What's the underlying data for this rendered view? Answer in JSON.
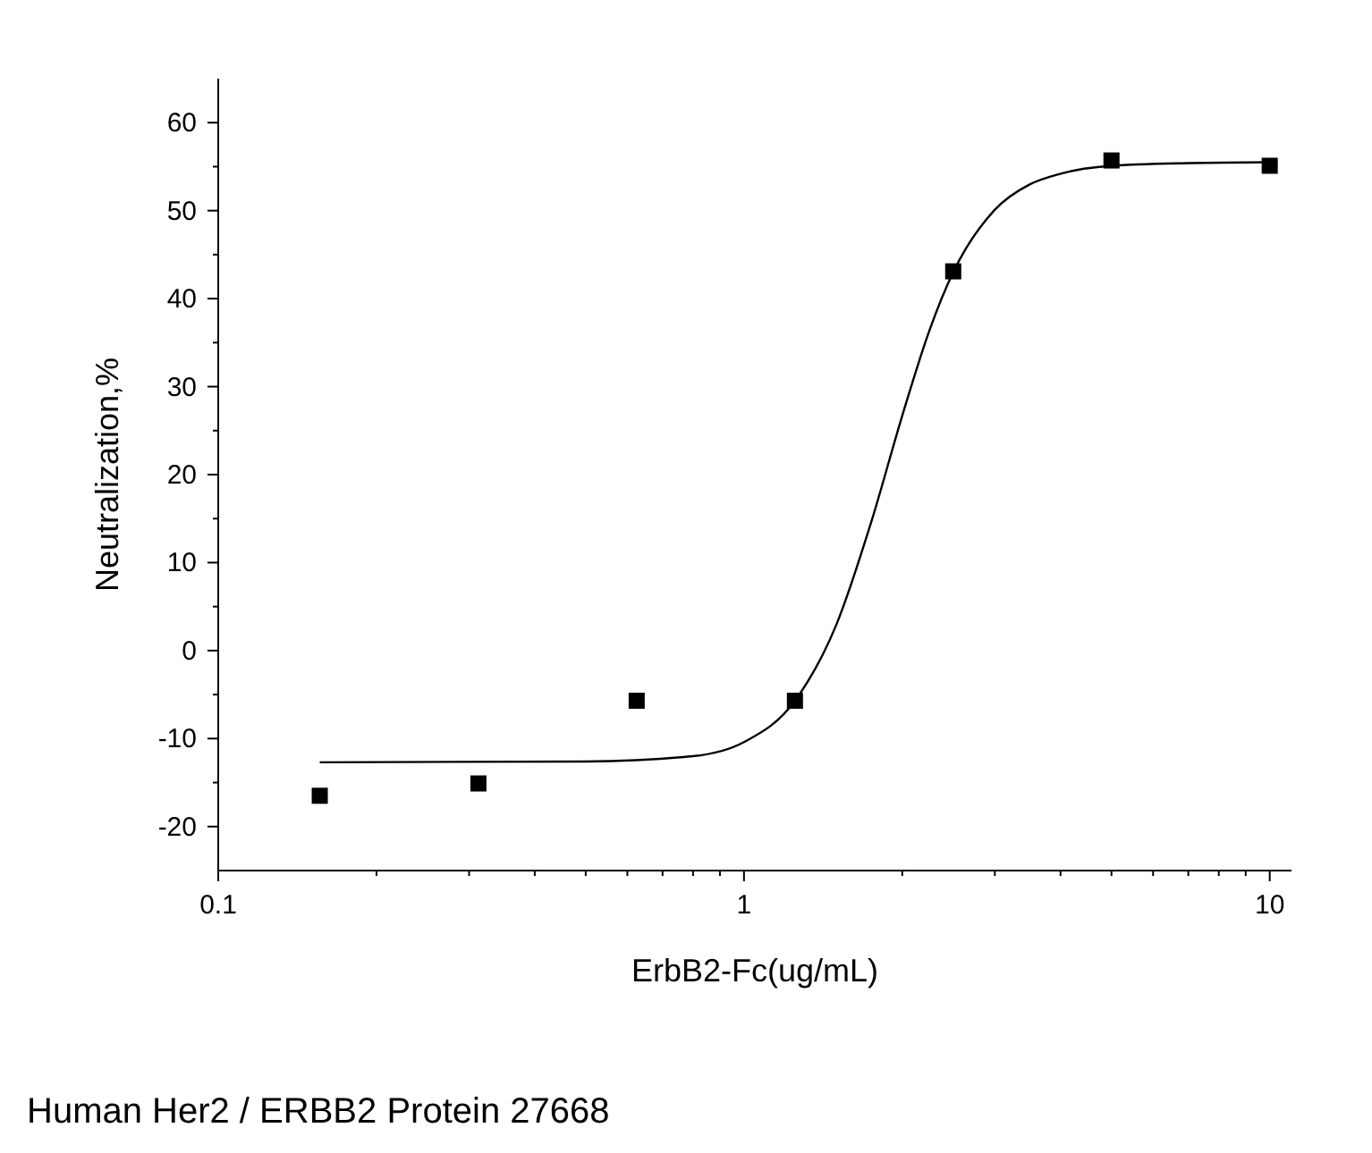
{
  "chart_data": {
    "type": "scatter",
    "xlabel": "ErbB2-Fc(ug/mL)",
    "ylabel": "Neutralization,%",
    "log": "x",
    "marker": "square",
    "grid": false,
    "xlim": [
      0.1,
      11
    ],
    "ylim": [
      -25,
      65
    ],
    "xticks": [
      0.1,
      {
        "value": 0.2,
        "label": null
      },
      {
        "value": 0.3,
        "label": null
      },
      {
        "value": 0.4,
        "label": null
      },
      {
        "value": 0.5,
        "label": null
      },
      {
        "value": 0.6,
        "label": null
      },
      {
        "value": 0.7,
        "label": null
      },
      {
        "value": 0.8,
        "label": null
      },
      {
        "value": 0.9,
        "label": null
      },
      1,
      {
        "value": 2,
        "label": null
      },
      {
        "value": 3,
        "label": null
      },
      {
        "value": 4,
        "label": null
      },
      {
        "value": 5,
        "label": null
      },
      {
        "value": 6,
        "label": null
      },
      {
        "value": 7,
        "label": null
      },
      {
        "value": 8,
        "label": null
      },
      {
        "value": 9,
        "label": null
      },
      10
    ],
    "yticks": [
      -20,
      {
        "value": -15,
        "label": null
      },
      -10,
      {
        "value": -5,
        "label": null
      },
      0,
      {
        "value": 5,
        "label": null
      },
      10,
      {
        "value": 15,
        "label": null
      },
      20,
      {
        "value": 25,
        "label": null
      },
      30,
      {
        "value": 35,
        "label": null
      },
      40,
      {
        "value": 45,
        "label": null
      },
      50,
      {
        "value": 55,
        "label": null
      },
      60
    ],
    "series": [
      {
        "color": "#000000",
        "x": [
          0.156,
          0.3125,
          0.625,
          1.25,
          2.5,
          5,
          10
        ],
        "values": [
          -16.5,
          -15.1,
          -5.7,
          -5.7,
          43.1,
          55.7,
          55.1
        ]
      },
      {
        "type": "line",
        "color": "#000000",
        "marker": "none",
        "x": [
          0.156,
          0.5,
          0.8,
          1.0,
          1.25,
          1.5,
          1.75,
          2.0,
          2.25,
          2.5,
          3,
          3.5,
          4,
          5,
          7,
          10
        ],
        "values": [
          -12.7,
          -12.6,
          -12,
          -10.4,
          -5.7,
          3,
          14.8,
          26.7,
          36.3,
          43,
          50.1,
          53,
          54.2,
          55.1,
          55.4,
          55.5
        ]
      }
    ],
    "annotations": [
      "Human Her2 / ERBB2 Protein 27668"
    ]
  }
}
